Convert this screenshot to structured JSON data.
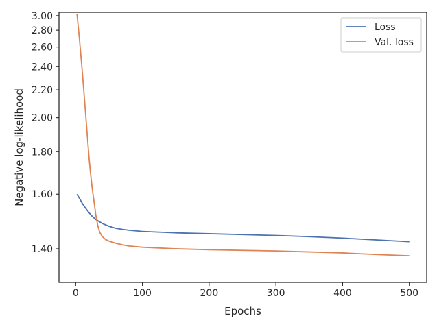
{
  "chart_data": {
    "type": "line",
    "xlabel": "Epochs",
    "ylabel": "Negative log-likelihood",
    "xlim": [
      -25,
      526
    ],
    "ylim": [
      1.3,
      3.05
    ],
    "yscale": "reciprocal",
    "xticks": [
      0,
      100,
      200,
      300,
      400,
      500
    ],
    "xtick_labels": [
      "0",
      "100",
      "200",
      "300",
      "400",
      "500"
    ],
    "yticks": [
      1.4,
      1.6,
      1.8,
      2.0,
      2.2,
      2.4,
      2.6,
      2.8,
      3.0
    ],
    "ytick_labels": [
      "1.40",
      "1.60",
      "1.80",
      "2.00",
      "2.20",
      "2.40",
      "2.60",
      "2.80",
      "3.00"
    ],
    "grid": false,
    "legend_position": "top-right",
    "series": [
      {
        "name": "Loss",
        "color": "#4c72b0",
        "x": [
          2,
          5,
          10,
          15,
          20,
          25,
          30,
          40,
          50,
          60,
          70,
          80,
          100,
          150,
          200,
          250,
          300,
          350,
          400,
          450,
          500
        ],
        "y": [
          1.6,
          1.586,
          1.562,
          1.543,
          1.526,
          1.512,
          1.501,
          1.486,
          1.476,
          1.469,
          1.465,
          1.462,
          1.458,
          1.453,
          1.45,
          1.447,
          1.444,
          1.44,
          1.435,
          1.429,
          1.423
        ]
      },
      {
        "name": "Val. loss",
        "color": "#dd8452",
        "x": [
          2,
          5,
          10,
          15,
          18,
          20,
          22,
          25,
          28,
          30,
          33,
          36,
          40,
          45,
          50,
          60,
          70,
          80,
          100,
          150,
          200,
          250,
          300,
          350,
          400,
          450,
          500
        ],
        "y": [
          3.02,
          2.75,
          2.35,
          2.02,
          1.86,
          1.77,
          1.7,
          1.62,
          1.56,
          1.52,
          1.48,
          1.455,
          1.44,
          1.43,
          1.425,
          1.418,
          1.413,
          1.409,
          1.405,
          1.4,
          1.397,
          1.395,
          1.393,
          1.39,
          1.387,
          1.382,
          1.378
        ]
      }
    ]
  }
}
